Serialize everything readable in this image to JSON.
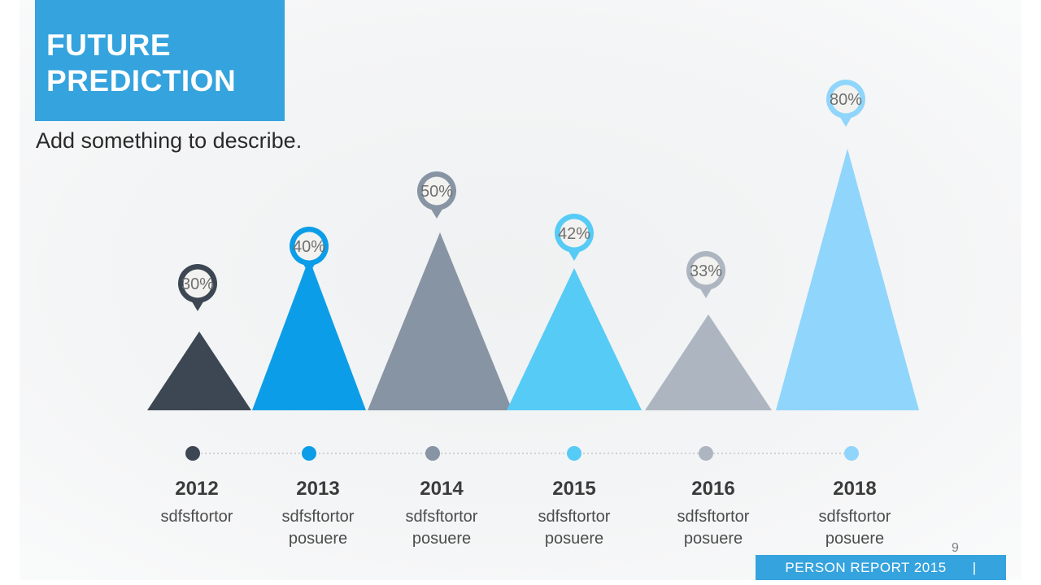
{
  "slide": {
    "title_line1": "FUTURE",
    "title_line2": "PREDICTION",
    "subtitle": "Add something to describe.",
    "page_number": "9",
    "footer": {
      "label": "PERSON REPORT 2015",
      "divider": "|"
    }
  },
  "colors": {
    "accent_blue": "#35a3dd",
    "title_text": "#ffffff",
    "pin_inner": "#f2f2f0",
    "pin_text": "#6f6f6f",
    "year_text": "#3b3b3b",
    "desc_text": "#4c4c4c",
    "timeline_line": "#c3c6c9",
    "page_number_text": "#808080"
  },
  "chart_data": {
    "type": "bar",
    "variant": "triangle-peak-timeline",
    "title": "FUTURE PREDICTION",
    "subtitle": "Add something to describe.",
    "categories": [
      "2012",
      "2013",
      "2014",
      "2015",
      "2016",
      "2018"
    ],
    "values": [
      30,
      40,
      50,
      42,
      33,
      80
    ],
    "value_labels": [
      "30%",
      "40%",
      "50%",
      "42%",
      "33%",
      "80%"
    ],
    "descriptions": [
      [
        "sdfsftortor"
      ],
      [
        "sdfsftortor",
        "posuere"
      ],
      [
        "sdfsftortor",
        "posuere"
      ],
      [
        "sdfsftortor",
        "posuere"
      ],
      [
        "sdfsftortor",
        "posuere"
      ],
      [
        "sdfsftortor",
        "posuere"
      ]
    ],
    "colors": [
      "#3d4753",
      "#0c9de8",
      "#8794a3",
      "#56cbf6",
      "#adb6c0",
      "#90d5fb"
    ],
    "ylim": [
      0,
      100
    ],
    "grid": false,
    "legend": "none"
  }
}
